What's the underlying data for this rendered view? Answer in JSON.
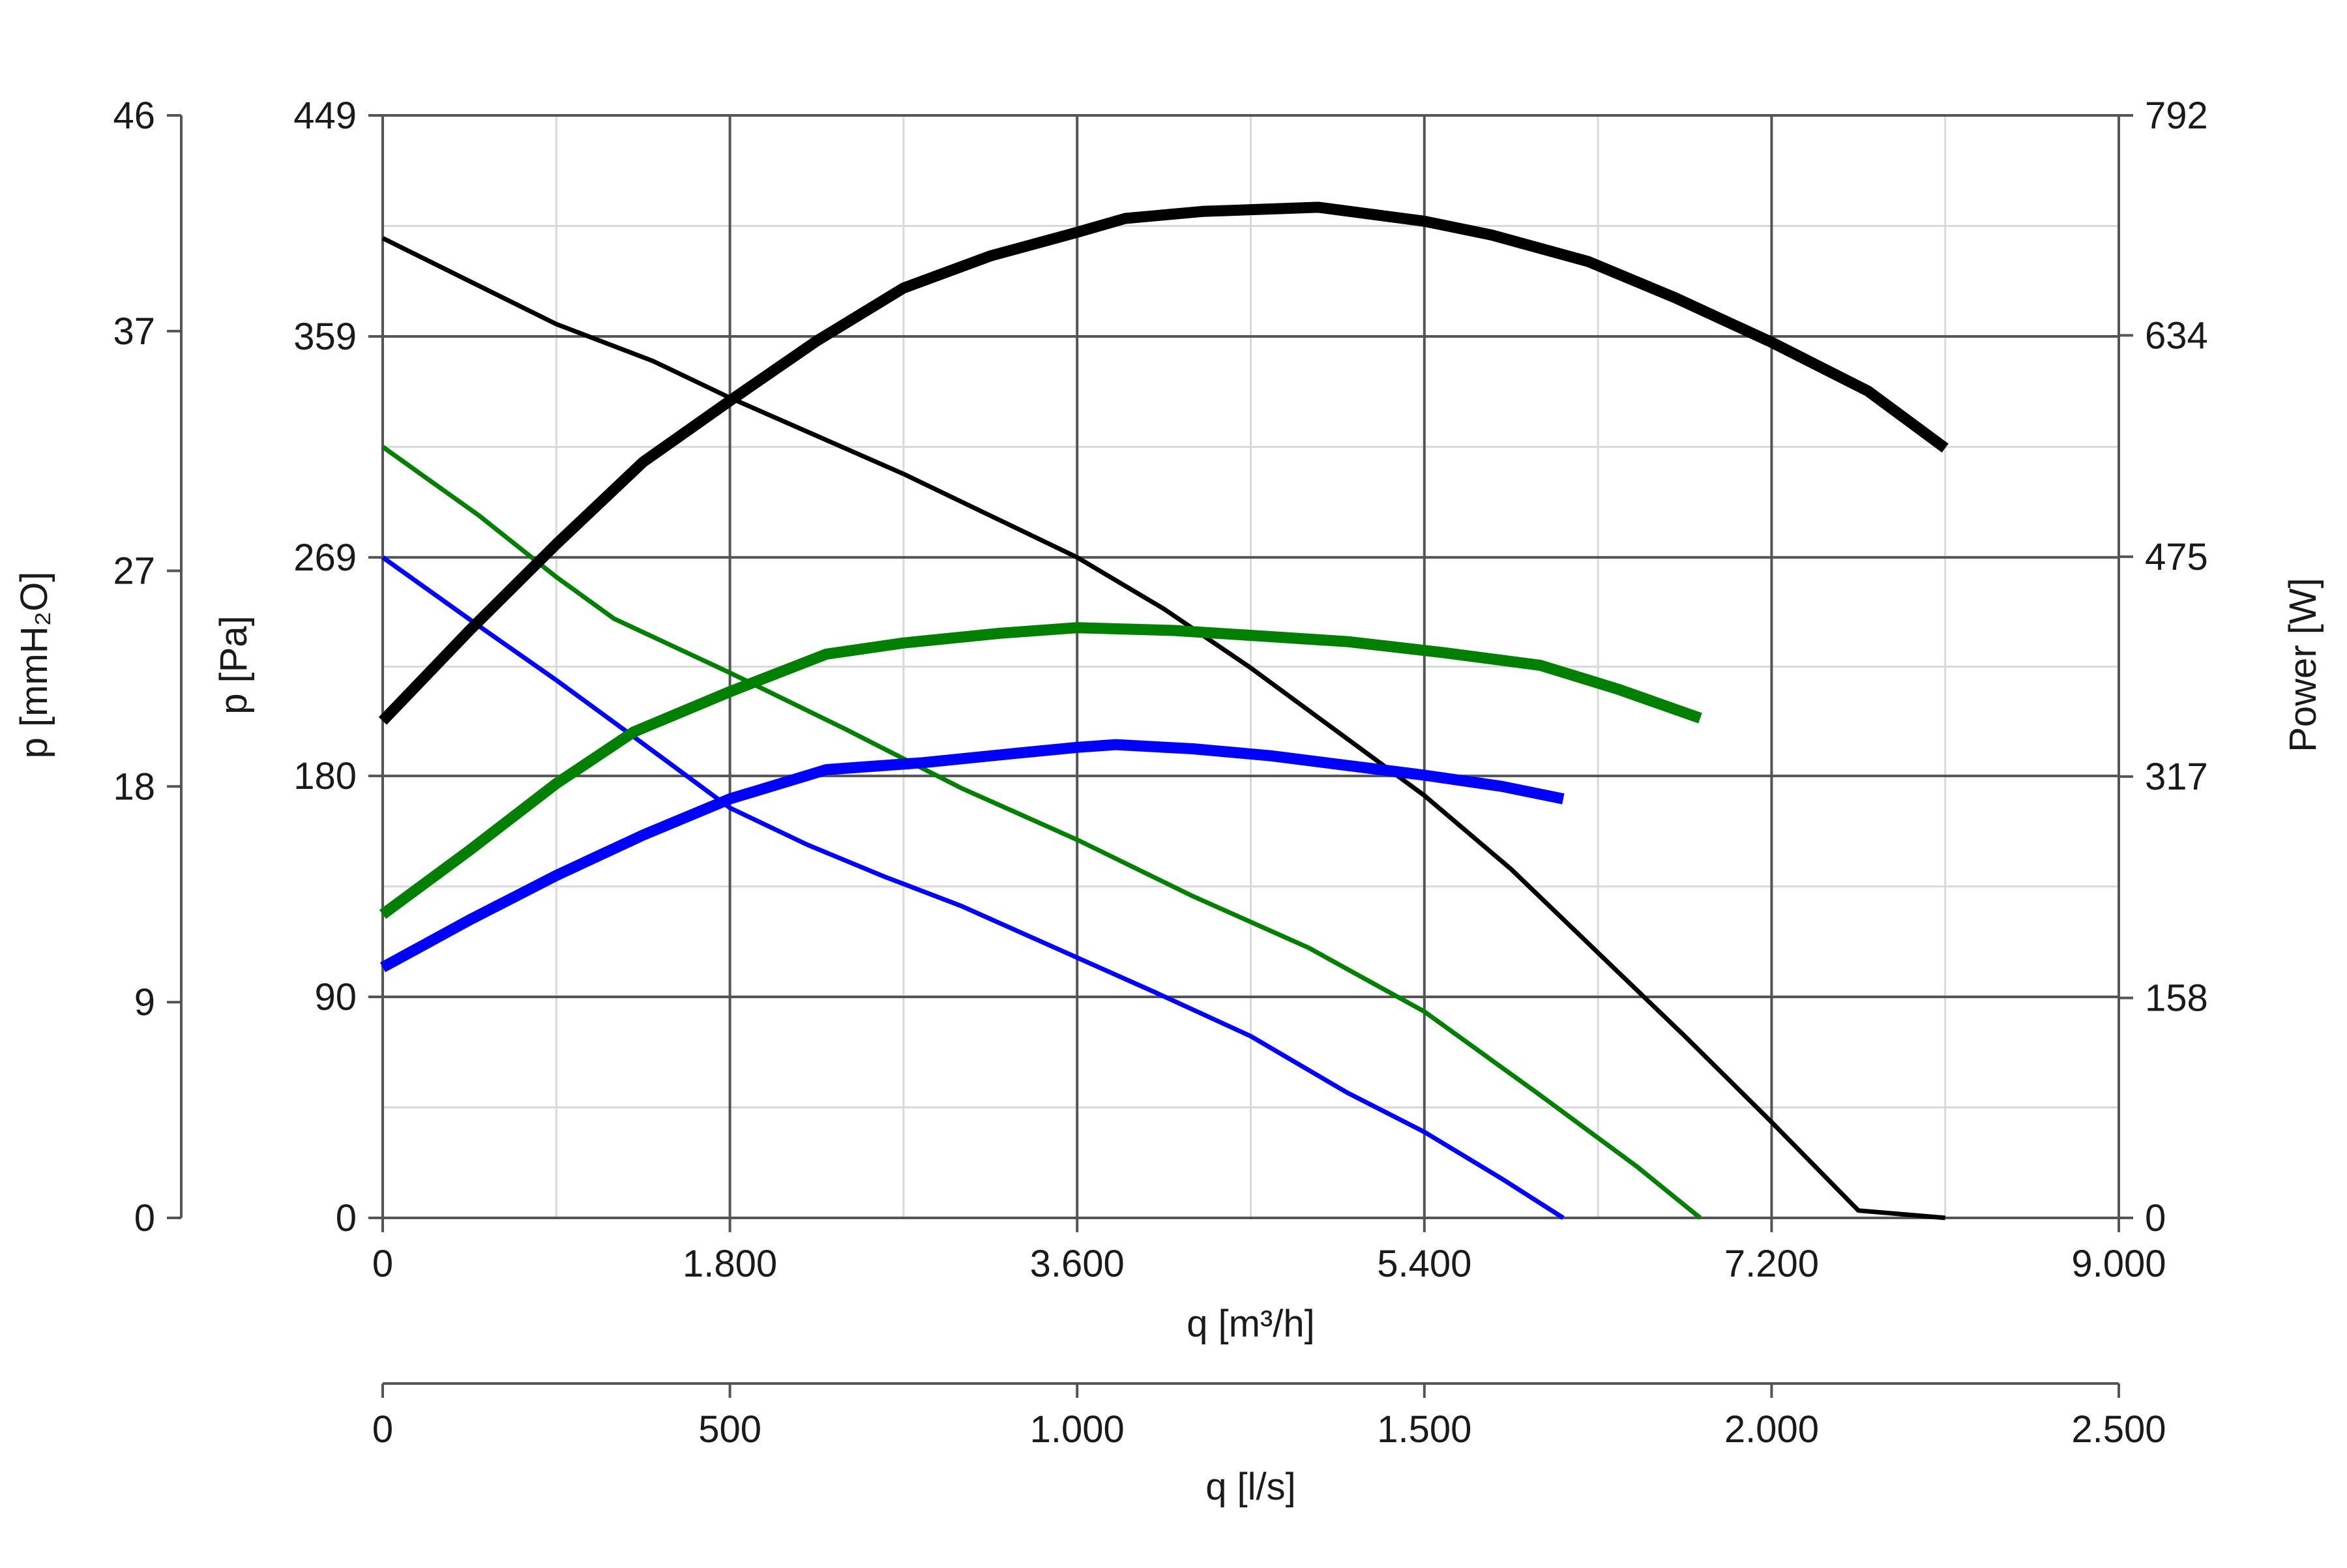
{
  "chart_data": {
    "type": "line",
    "x_axis_primary": {
      "label": "q [m³/h]",
      "range": [
        0,
        9000
      ],
      "ticks": [
        0,
        1800,
        3600,
        5400,
        7200,
        9000
      ],
      "tick_labels": [
        "0",
        "1.800",
        "3.600",
        "5.400",
        "7.200",
        "9.000"
      ]
    },
    "x_axis_secondary": {
      "label": "q [l/s]",
      "range": [
        0,
        2500
      ],
      "ticks": [
        0,
        500,
        1000,
        1500,
        2000,
        2500
      ],
      "tick_labels": [
        "0",
        "500",
        "1.000",
        "1.500",
        "2.000",
        "2.500"
      ]
    },
    "y_axis_pressure": {
      "label": "p [Pa]",
      "range": [
        0,
        449
      ],
      "ticks": [
        0,
        90,
        180,
        269,
        359,
        449
      ],
      "tick_labels": [
        "0",
        "90",
        "180",
        "269",
        "359",
        "449"
      ]
    },
    "y_axis_mmh2o": {
      "label": "p [mmH₂O]",
      "range": [
        0,
        46
      ],
      "ticks": [
        0,
        9,
        18,
        27,
        37,
        46
      ],
      "tick_labels": [
        "0",
        "9",
        "18",
        "27",
        "37",
        "46"
      ]
    },
    "y_axis_power": {
      "label": "Power [W]",
      "range": [
        0,
        792
      ],
      "ticks": [
        0,
        158,
        317,
        475,
        634,
        792
      ],
      "tick_labels": [
        "0",
        "158",
        "317",
        "475",
        "634",
        "792"
      ]
    },
    "grid": true,
    "series": [
      {
        "kind": "pressure",
        "axis": "pressure",
        "color": "#000000",
        "x": [
          0,
          900,
          1400,
          1800,
          2700,
          3150,
          3600,
          4050,
          4500,
          4950,
          5400,
          5850,
          6300,
          6750,
          7200,
          7650,
          8100
        ],
        "y": [
          399,
          364,
          349,
          334,
          303,
          286,
          269,
          248,
          224,
          198,
          172,
          142,
          108,
          74,
          39,
          3,
          0
        ]
      },
      {
        "kind": "pressure",
        "axis": "pressure",
        "color": "#008000",
        "x": [
          0,
          500,
          900,
          1200,
          1800,
          2400,
          3000,
          3600,
          4200,
          4800,
          5400,
          6000,
          6500,
          6830
        ],
        "y": [
          314,
          286,
          261,
          244,
          222,
          199,
          175,
          154,
          131,
          110,
          84,
          50,
          21,
          0
        ]
      },
      {
        "kind": "pressure",
        "axis": "pressure",
        "color": "#0000ff",
        "x": [
          0,
          500,
          900,
          1300,
          1800,
          2200,
          2600,
          3000,
          3600,
          4000,
          4500,
          5000,
          5400,
          5800,
          6120
        ],
        "y": [
          269,
          241,
          219,
          196,
          167,
          152,
          139,
          127,
          106,
          92,
          74,
          51,
          35,
          16,
          0
        ]
      },
      {
        "kind": "power",
        "axis": "power",
        "color": "#000000",
        "x": [
          0,
          450,
          900,
          1350,
          1800,
          2250,
          2700,
          3150,
          3600,
          3850,
          4250,
          4850,
          5400,
          5750,
          6250,
          6700,
          7200,
          7700,
          8100
        ],
        "y": [
          357,
          422,
          484,
          543,
          587,
          630,
          668,
          691,
          708,
          718,
          723,
          726,
          716,
          706,
          687,
          661,
          629,
          594,
          553
        ]
      },
      {
        "kind": "power",
        "axis": "power",
        "color": "#008000",
        "x": [
          0,
          450,
          900,
          1300,
          1800,
          2300,
          2700,
          3200,
          3600,
          4100,
          4550,
          5000,
          5500,
          6000,
          6400,
          6830
        ],
        "y": [
          218,
          264,
          312,
          349,
          378,
          405,
          413,
          420,
          424,
          422,
          418,
          414,
          406,
          397,
          380,
          359
        ]
      },
      {
        "kind": "power",
        "axis": "power",
        "color": "#0000ff",
        "x": [
          0,
          450,
          900,
          1350,
          1800,
          2300,
          2800,
          3300,
          3600,
          3800,
          4200,
          4600,
          5000,
          5400,
          5800,
          6120
        ],
        "y": [
          180,
          214,
          246,
          275,
          301,
          322,
          327,
          334,
          338,
          340,
          337,
          332,
          325,
          318,
          310,
          301
        ]
      }
    ]
  }
}
